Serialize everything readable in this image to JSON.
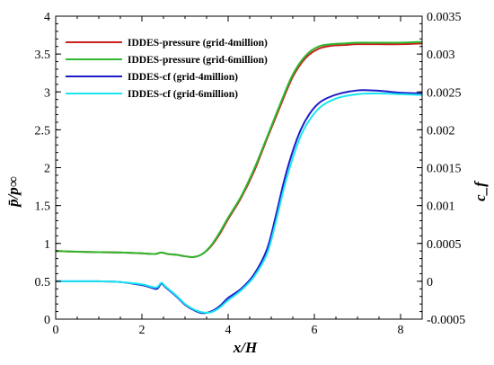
{
  "chart_data": {
    "type": "line",
    "xlabel": "x/H",
    "ylabel_left": "p̄/p∞",
    "ylabel_right": "c_f",
    "xlim": [
      0,
      8.5
    ],
    "ylim_left": [
      0,
      4
    ],
    "ylim_right": [
      -0.0005,
      0.0035
    ],
    "x_ticks": [
      0,
      2,
      4,
      6,
      8
    ],
    "x_tick_labels": [
      "0",
      "2",
      "4",
      "6",
      "8"
    ],
    "y_left_ticks": [
      0,
      0.5,
      1,
      1.5,
      2,
      2.5,
      3,
      3.5,
      4
    ],
    "y_left_tick_labels": [
      "0",
      "0.5",
      "1",
      "1.5",
      "2",
      "2.5",
      "3",
      "3.5",
      "4"
    ],
    "y_right_ticks": [
      -0.0005,
      0,
      0.0005,
      0.001,
      0.0015,
      0.002,
      0.0025,
      0.003,
      0.0035
    ],
    "y_right_tick_labels": [
      "-0.0005",
      "0",
      "0.0005",
      "0.001",
      "0.0015",
      "0.002",
      "0.0025",
      "0.003",
      "0.0035"
    ],
    "grid": false,
    "legend_position": "top-left",
    "series": [
      {
        "name": "IDDES-pressure (grid-4million)",
        "axis": "left",
        "color": "#cc1f1f",
        "x": [
          0,
          0.5,
          1.0,
          1.5,
          2.0,
          2.3,
          2.45,
          2.6,
          2.8,
          3.0,
          3.2,
          3.4,
          3.6,
          3.8,
          4.0,
          4.3,
          4.6,
          4.9,
          5.2,
          5.5,
          5.8,
          6.1,
          6.4,
          6.7,
          7.0,
          7.5,
          8.0,
          8.5
        ],
        "y": [
          0.9,
          0.89,
          0.885,
          0.88,
          0.87,
          0.86,
          0.88,
          0.86,
          0.85,
          0.83,
          0.82,
          0.86,
          0.96,
          1.12,
          1.32,
          1.6,
          1.95,
          2.38,
          2.8,
          3.2,
          3.45,
          3.57,
          3.61,
          3.62,
          3.63,
          3.63,
          3.63,
          3.64
        ]
      },
      {
        "name": "IDDES-pressure (grid-6million)",
        "axis": "left",
        "color": "#2db82d",
        "x": [
          0,
          0.5,
          1.0,
          1.5,
          2.0,
          2.3,
          2.45,
          2.6,
          2.8,
          3.0,
          3.2,
          3.4,
          3.6,
          3.8,
          4.0,
          4.3,
          4.6,
          4.9,
          5.2,
          5.5,
          5.8,
          6.1,
          6.4,
          6.7,
          7.0,
          7.5,
          8.0,
          8.5
        ],
        "y": [
          0.9,
          0.89,
          0.885,
          0.88,
          0.87,
          0.86,
          0.88,
          0.86,
          0.85,
          0.83,
          0.82,
          0.86,
          0.97,
          1.14,
          1.34,
          1.62,
          1.98,
          2.4,
          2.83,
          3.23,
          3.48,
          3.6,
          3.63,
          3.64,
          3.65,
          3.65,
          3.65,
          3.66
        ]
      },
      {
        "name": "IDDES-cf (grid-4million)",
        "axis": "right",
        "color": "#1c1cc8",
        "x": [
          0,
          0.5,
          1.0,
          1.5,
          2.0,
          2.2,
          2.35,
          2.45,
          2.55,
          2.8,
          3.0,
          3.2,
          3.4,
          3.6,
          3.8,
          4.0,
          4.3,
          4.6,
          4.9,
          5.1,
          5.3,
          5.5,
          5.7,
          5.9,
          6.1,
          6.3,
          6.6,
          7.0,
          7.3,
          7.6,
          8.0,
          8.5
        ],
        "y": [
          0.0,
          0.0,
          0.0,
          -1e-05,
          -5e-05,
          -8e-05,
          -0.0001,
          -3e-05,
          -8e-05,
          -0.0002,
          -0.00031,
          -0.00038,
          -0.00042,
          -0.0004,
          -0.00033,
          -0.00022,
          -0.0001,
          9e-05,
          0.00042,
          0.00085,
          0.00133,
          0.00172,
          0.00202,
          0.00222,
          0.00235,
          0.00242,
          0.00248,
          0.00252,
          0.00252,
          0.00251,
          0.00249,
          0.00248
        ]
      },
      {
        "name": "IDDES-cf (grid-6million)",
        "axis": "right",
        "color": "#19e6f2",
        "x": [
          0,
          0.5,
          1.0,
          1.5,
          2.0,
          2.2,
          2.35,
          2.45,
          2.55,
          2.8,
          3.0,
          3.2,
          3.4,
          3.6,
          3.8,
          4.0,
          4.3,
          4.6,
          4.9,
          5.1,
          5.3,
          5.5,
          5.7,
          5.9,
          6.1,
          6.3,
          6.6,
          7.0,
          7.3,
          7.6,
          8.0,
          8.5
        ],
        "y": [
          0.0,
          0.0,
          0.0,
          -1e-05,
          -4e-05,
          -7e-05,
          -8e-05,
          -2e-05,
          -7e-05,
          -0.00019,
          -0.0003,
          -0.00037,
          -0.00041,
          -0.00041,
          -0.00035,
          -0.00025,
          -0.00012,
          6e-05,
          0.00036,
          0.00077,
          0.00124,
          0.00163,
          0.00194,
          0.00214,
          0.00228,
          0.00236,
          0.00243,
          0.00247,
          0.00248,
          0.00248,
          0.00247,
          0.00246
        ]
      }
    ]
  }
}
